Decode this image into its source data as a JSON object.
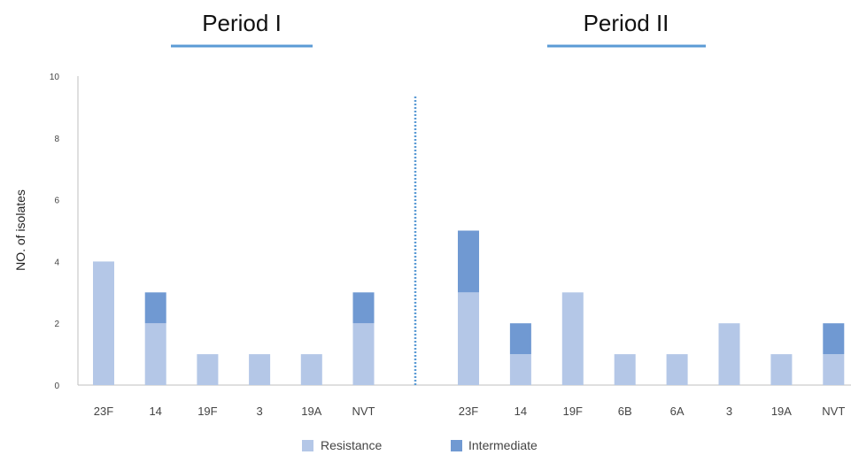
{
  "chart_data": {
    "type": "bar",
    "stacked": true,
    "ylabel": "NO. of isolates",
    "ylim": [
      0,
      10
    ],
    "yticks": [
      "0",
      "2",
      "4",
      "6",
      "8",
      "10"
    ],
    "grid": false,
    "legend": {
      "position": "bottom",
      "entries": [
        {
          "name": "Resistance",
          "color": "#b4c7e7"
        },
        {
          "name": "Intermediate",
          "color": "#7099d2"
        }
      ]
    },
    "groups": [
      {
        "title": "Period I",
        "categories": [
          "23F",
          "14",
          "19F",
          "3",
          "19A",
          "NVT"
        ],
        "series": [
          {
            "name": "Resistance",
            "values": [
              4,
              2,
              1,
              1,
              1,
              2
            ]
          },
          {
            "name": "Intermediate",
            "values": [
              0,
              1,
              0,
              0,
              0,
              1
            ]
          }
        ]
      },
      {
        "title": "Period II",
        "categories": [
          "23F",
          "14",
          "19F",
          "6B",
          "6A",
          "3",
          "19A",
          "NVT"
        ],
        "series": [
          {
            "name": "Resistance",
            "values": [
              3,
              1,
              3,
              1,
              1,
              2,
              1,
              1
            ]
          },
          {
            "name": "Intermediate",
            "values": [
              2,
              1,
              0,
              0,
              0,
              0,
              0,
              1
            ]
          }
        ]
      }
    ],
    "colors": {
      "title_underline": "#5b9bd5",
      "divider": "#5b9bd5",
      "axis": "#bfbfbf"
    }
  }
}
